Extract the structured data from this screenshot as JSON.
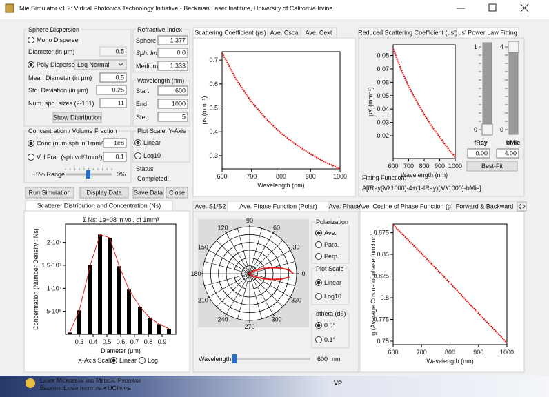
{
  "window": {
    "title": "Mie Simulator v1.2: Virtual Photonics Technology Initiative - Beckman Laser Institute, University of California Irvine"
  },
  "sphere": {
    "legend": "Sphere Dispersion",
    "mono": "Mono Disperse",
    "diameter_label": "Diameter (in μm)",
    "diameter": 0.5,
    "poly": "Poly Disperse",
    "distribution": "Log Normal",
    "mean_label": "Mean Diameter (in μm)",
    "mean": 0.5,
    "std_label": "Std. Deviation (in μm)",
    "std": 0.25,
    "num_label": "Num. sph. sizes (2-101)",
    "num": 11,
    "show": "Show Distribution"
  },
  "refractive": {
    "legend": "Refractive Index",
    "sphere_label": "Sphere",
    "sphere": 1.377,
    "im_label": "Sph. Im",
    "im": "0.0",
    "medium_label": "Medium",
    "medium": 1.333
  },
  "wavelength": {
    "legend": "Wavelength (nm)",
    "start_label": "Start",
    "start": 600,
    "end_label": "End",
    "end": 1000,
    "step_label": "Step",
    "step": 5
  },
  "concentration": {
    "legend": "Concentration / Volume Fraction",
    "conc_label": "Conc (num sph in 1mm³)",
    "conc": "1e8",
    "vol_label": "Vol Frac (sph vol/1mm³)",
    "vol": 0.1,
    "range_label": "±5% Range",
    "range": "0%"
  },
  "plot_scale": {
    "legend": "Plot Scale: Y-Axis",
    "linear": "Linear",
    "log": "Log10"
  },
  "status": {
    "label": "Status",
    "value": "Completed!"
  },
  "buttons": [
    "Run Simulation",
    "Display Data",
    "Save Data",
    "Close"
  ],
  "fitting": {
    "f_label": "fRay",
    "b_label": "bMie",
    "f_range": [
      0,
      1
    ],
    "b_range": [
      0,
      4
    ],
    "f_value": "0.00",
    "b_value": "4.00",
    "best_fit": "Best-Fit",
    "function_label": "Fitting Function:",
    "function": "A[fRay(λ/λ1000)-4+(1-fRay)(λ/λ1000)-bMie]"
  },
  "polar_controls": {
    "polarization": "Polarization",
    "ave": "Ave.",
    "para": "Para.",
    "perp": "Perp.",
    "scale": "Plot Scale",
    "linear": "Linear",
    "log": "Log10",
    "dtheta": "dtheta (dθ)",
    "d05": "0.5°",
    "d01": "0.1°",
    "wavelength_label": "Wavelength",
    "wavelength": 600,
    "unit": "nm"
  },
  "distribution_controls": {
    "scale_label": "X-Axis Scale",
    "linear": "Linear",
    "log": "Log"
  },
  "footer": {
    "line1": "Laser Microbeam and Medical Program",
    "line2": "Beckman Laser Institute • UCIrvine",
    "logo": "VP"
  },
  "chart_data": [
    {
      "type": "line",
      "tabs": [
        "Scattering Coefficient (μs)",
        "Ave. Csca",
        "Ave. Cext"
      ],
      "x": [
        600,
        650,
        700,
        750,
        800,
        850,
        900,
        950,
        1000
      ],
      "series": [
        {
          "color": "#e02020",
          "values": [
            0.73,
            0.615,
            0.525,
            0.453,
            0.394,
            0.347,
            0.307,
            0.273,
            0.245
          ]
        }
      ],
      "xlim": [
        600,
        1000
      ],
      "ylim": [
        0.245,
        0.735
      ],
      "xticks": [
        600,
        700,
        800,
        900,
        1000
      ],
      "yticks": [
        0.3,
        0.4,
        0.5,
        0.6,
        0.7
      ],
      "xlabel": "Wavelength (nm)",
      "ylabel": "μs (mm⁻¹)"
    },
    {
      "type": "line",
      "tabs": [
        "Reduced Scattering Coefficient (μs')",
        "μs' Power Law Fitting"
      ],
      "x": [
        600,
        650,
        700,
        750,
        800,
        850,
        900,
        950,
        1000
      ],
      "series": [
        {
          "color": "#e02020",
          "values": [
            0.085,
            0.07,
            0.057,
            0.046,
            0.036,
            0.027,
            0.019,
            0.011,
            0.004
          ]
        }
      ],
      "xlim": [
        600,
        1000
      ],
      "ylim": [
        0.003,
        0.088
      ],
      "xticks": [
        600,
        700,
        800,
        900,
        1000
      ],
      "yticks": [
        0.02,
        0.03,
        0.04,
        0.05,
        0.06,
        0.07,
        0.08
      ],
      "xlabel": "Wavelength (nm)",
      "ylabel": "μs' (mm⁻¹)"
    },
    {
      "type": "bar",
      "tabs": [
        "Scatterer Distribution and Concentration (Ns)"
      ],
      "title": "Σ Ns: 1e+08 in vol. of 1mm³",
      "x": [
        0.23,
        0.3,
        0.38,
        0.45,
        0.52,
        0.59,
        0.66,
        0.74,
        0.81,
        0.88,
        0.95
      ],
      "values": [
        400000,
        5200000,
        15100000,
        21700000,
        21000000,
        14800000,
        9700000,
        6000000,
        3600000,
        2200000,
        1200000
      ],
      "color": "#000000",
      "line_color": "#e02020",
      "xlim": [
        0.2,
        1.0
      ],
      "ylim": [
        0,
        24000000
      ],
      "xticks": [
        0.3,
        0.4,
        0.5,
        0.6,
        0.7,
        0.8,
        0.9
      ],
      "yticks": [
        {
          "value": 5000000,
          "label": "5·10⁶"
        },
        {
          "value": 10000000,
          "label": "1·10⁷"
        },
        {
          "value": 15000000,
          "label": "1.5·10⁷"
        },
        {
          "value": 20000000,
          "label": "2·10⁷"
        }
      ],
      "xlabel": "Diameter (μm)",
      "ylabel": "Concentration (Number Density : Ns)"
    },
    {
      "type": "polar",
      "tabs": [
        "Ave. S1/S2",
        "Ave. Phase Function (Polar)",
        "Ave. Phase"
      ],
      "angles": [
        0,
        5,
        10,
        15,
        20,
        25,
        30,
        40,
        60,
        90,
        120,
        150,
        180,
        210,
        240,
        270,
        300,
        320,
        330,
        335,
        340,
        345,
        350,
        355
      ],
      "values": [
        0.93,
        0.85,
        0.68,
        0.48,
        0.32,
        0.2,
        0.13,
        0.06,
        0.02,
        0.01,
        0.01,
        0.01,
        0.01,
        0.01,
        0.01,
        0.01,
        0.02,
        0.06,
        0.13,
        0.2,
        0.32,
        0.48,
        0.68,
        0.85
      ],
      "color": "#e02020",
      "rlim": [
        0,
        1
      ],
      "thetaticks": [
        0,
        30,
        60,
        90,
        120,
        150,
        180,
        210,
        240,
        270,
        300,
        330
      ]
    },
    {
      "type": "line",
      "tabs": [
        "Ave. Cosine of Phase Function (g)",
        "Forward & Backward"
      ],
      "x": [
        600,
        700,
        800,
        900,
        1000
      ],
      "series": [
        {
          "color": "#e02020",
          "values": [
            0.884,
            0.851,
            0.817,
            0.782,
            0.748
          ]
        }
      ],
      "xlim": [
        600,
        1000
      ],
      "ylim": [
        0.746,
        0.885
      ],
      "xticks": [
        600,
        700,
        800,
        900,
        1000
      ],
      "yticks": [
        0.75,
        0.775,
        0.8,
        0.825,
        0.85,
        0.875
      ],
      "xlabel": "Wavelength (nm)",
      "ylabel": "g (Average Cosine of phase function)"
    }
  ]
}
